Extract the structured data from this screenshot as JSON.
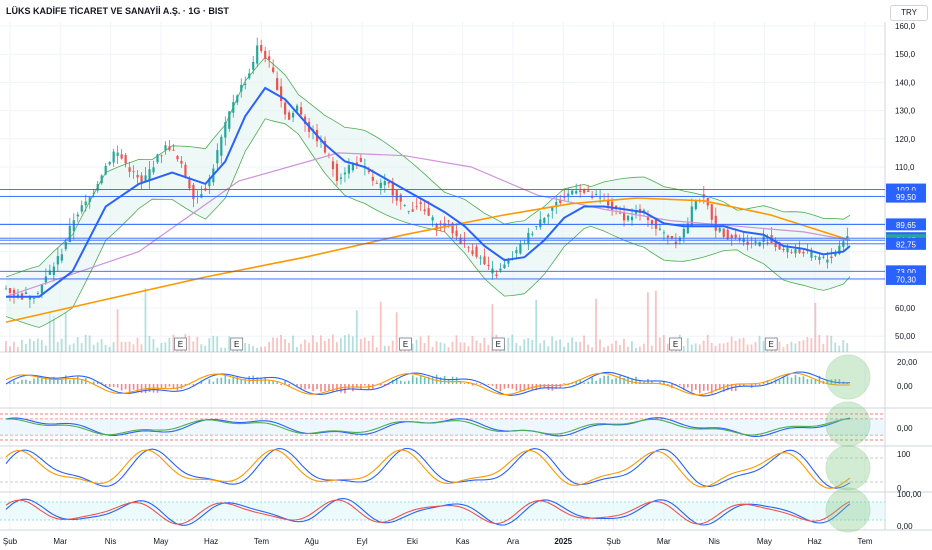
{
  "header": {
    "symbol": "LÜKS KADİFE TİCARET VE SANAYİİ A.Ş. · 1G · BIST",
    "currency": "TRY"
  },
  "chart_data": {
    "type": "line",
    "x_ticks": [
      "Şub",
      "Mar",
      "Nis",
      "May",
      "Haz",
      "Tem",
      "Ağu",
      "Eyl",
      "Eki",
      "Kas",
      "Ara",
      "2025",
      "Şub",
      "Mar",
      "Nis",
      "May",
      "Haz",
      "Tem"
    ],
    "price_axis": [
      "160,0",
      "150,0",
      "140,0",
      "130,0",
      "120,0",
      "110,0",
      "60,00",
      "50,00"
    ],
    "ylim": [
      45,
      161
    ],
    "levels": [
      {
        "label": "102,0",
        "value": 102.0
      },
      {
        "label": "99,50",
        "value": 99.5
      },
      {
        "label": "89,65",
        "value": 89.65
      },
      {
        "label": "84,75",
        "value": 84.75
      },
      {
        "label": "84,05",
        "value": 84.05
      },
      {
        "label": "82,75",
        "value": 82.75
      },
      {
        "label": "73,00",
        "value": 73.0
      },
      {
        "label": "70,30",
        "value": 70.3
      }
    ],
    "price_series": [
      [
        0,
        68
      ],
      [
        5,
        64
      ],
      [
        10,
        65
      ],
      [
        14,
        72
      ],
      [
        18,
        80
      ],
      [
        22,
        93
      ],
      [
        26,
        98
      ],
      [
        30,
        108
      ],
      [
        34,
        116
      ],
      [
        38,
        110
      ],
      [
        42,
        104
      ],
      [
        46,
        112
      ],
      [
        50,
        118
      ],
      [
        54,
        110
      ],
      [
        58,
        99
      ],
      [
        62,
        104
      ],
      [
        66,
        120
      ],
      [
        70,
        135
      ],
      [
        74,
        142
      ],
      [
        77,
        153
      ],
      [
        80,
        148
      ],
      [
        83,
        138
      ],
      [
        86,
        126
      ],
      [
        89,
        132
      ],
      [
        92,
        124
      ],
      [
        95,
        120
      ],
      [
        98,
        114
      ],
      [
        101,
        106
      ],
      [
        104,
        110
      ],
      [
        107,
        112
      ],
      [
        110,
        108
      ],
      [
        113,
        103
      ],
      [
        116,
        104
      ],
      [
        119,
        99
      ],
      [
        122,
        94
      ],
      [
        125,
        97
      ],
      [
        128,
        93
      ],
      [
        131,
        89
      ],
      [
        134,
        90
      ],
      [
        137,
        85
      ],
      [
        140,
        82
      ],
      [
        143,
        79
      ],
      [
        146,
        74
      ],
      [
        149,
        72
      ],
      [
        152,
        76
      ],
      [
        155,
        80
      ],
      [
        158,
        85
      ],
      [
        161,
        90
      ],
      [
        164,
        94
      ],
      [
        167,
        97
      ],
      [
        170,
        100
      ],
      [
        173,
        103
      ],
      [
        176,
        100
      ],
      [
        179,
        99
      ],
      [
        182,
        97
      ],
      [
        185,
        94
      ],
      [
        188,
        92
      ],
      [
        191,
        94
      ],
      [
        194,
        93
      ],
      [
        197,
        88
      ],
      [
        200,
        86
      ],
      [
        203,
        84
      ],
      [
        206,
        89
      ],
      [
        209,
        100
      ],
      [
        212,
        97
      ],
      [
        215,
        88
      ],
      [
        218,
        86
      ],
      [
        221,
        85
      ],
      [
        224,
        84
      ],
      [
        227,
        83
      ],
      [
        230,
        85
      ],
      [
        233,
        82
      ],
      [
        236,
        80
      ],
      [
        239,
        81
      ],
      [
        242,
        79
      ],
      [
        245,
        78
      ],
      [
        248,
        77
      ],
      [
        251,
        80
      ],
      [
        254,
        86
      ]
    ],
    "sma_series": [
      [
        0,
        64
      ],
      [
        10,
        64
      ],
      [
        20,
        73
      ],
      [
        30,
        96
      ],
      [
        40,
        104
      ],
      [
        50,
        108
      ],
      [
        60,
        104
      ],
      [
        66,
        112
      ],
      [
        72,
        128
      ],
      [
        78,
        138
      ],
      [
        84,
        134
      ],
      [
        90,
        126
      ],
      [
        96,
        118
      ],
      [
        102,
        112
      ],
      [
        108,
        110
      ],
      [
        114,
        106
      ],
      [
        120,
        102
      ],
      [
        126,
        98
      ],
      [
        132,
        94
      ],
      [
        138,
        89
      ],
      [
        144,
        82
      ],
      [
        150,
        77
      ],
      [
        156,
        78
      ],
      [
        162,
        84
      ],
      [
        168,
        92
      ],
      [
        174,
        96
      ],
      [
        180,
        96
      ],
      [
        186,
        95
      ],
      [
        192,
        94
      ],
      [
        198,
        90
      ],
      [
        204,
        89
      ],
      [
        210,
        89
      ],
      [
        216,
        89
      ],
      [
        222,
        87
      ],
      [
        228,
        86
      ],
      [
        234,
        82
      ],
      [
        240,
        81
      ],
      [
        246,
        79
      ],
      [
        252,
        80
      ],
      [
        254,
        82
      ]
    ],
    "ma200_series": [
      [
        0,
        55
      ],
      [
        30,
        63
      ],
      [
        60,
        71
      ],
      [
        90,
        78
      ],
      [
        120,
        86
      ],
      [
        150,
        93
      ],
      [
        170,
        97
      ],
      [
        190,
        99
      ],
      [
        210,
        98
      ],
      [
        230,
        93
      ],
      [
        254,
        84
      ]
    ],
    "ma100_series": [
      [
        0,
        64
      ],
      [
        40,
        80
      ],
      [
        70,
        105
      ],
      [
        100,
        115
      ],
      [
        120,
        114
      ],
      [
        140,
        110
      ],
      [
        160,
        100
      ],
      [
        180,
        95
      ],
      [
        200,
        91
      ],
      [
        220,
        89
      ],
      [
        240,
        87
      ],
      [
        254,
        84
      ]
    ],
    "earnings_markers": [
      "E",
      "E",
      "E",
      "E",
      "E",
      "E"
    ],
    "indicator_axes": [
      {
        "name": "",
        "ticks": [
          "20,00",
          "0,00"
        ]
      },
      {
        "name": "",
        "ticks": [
          "0,00"
        ]
      },
      {
        "name": "",
        "ticks": [
          "100",
          "0"
        ]
      },
      {
        "name": "",
        "ticks": [
          "100,00",
          "0,00"
        ]
      }
    ],
    "grid": true,
    "legend": "none"
  },
  "colors": {
    "up": "#26a69a",
    "down": "#ef5350",
    "sma": "#2962ff",
    "ma200": "#ff9800",
    "ma100": "#ce93d8",
    "band": "#4caf50",
    "level": "#2962ff",
    "highlight": "#81c784"
  }
}
